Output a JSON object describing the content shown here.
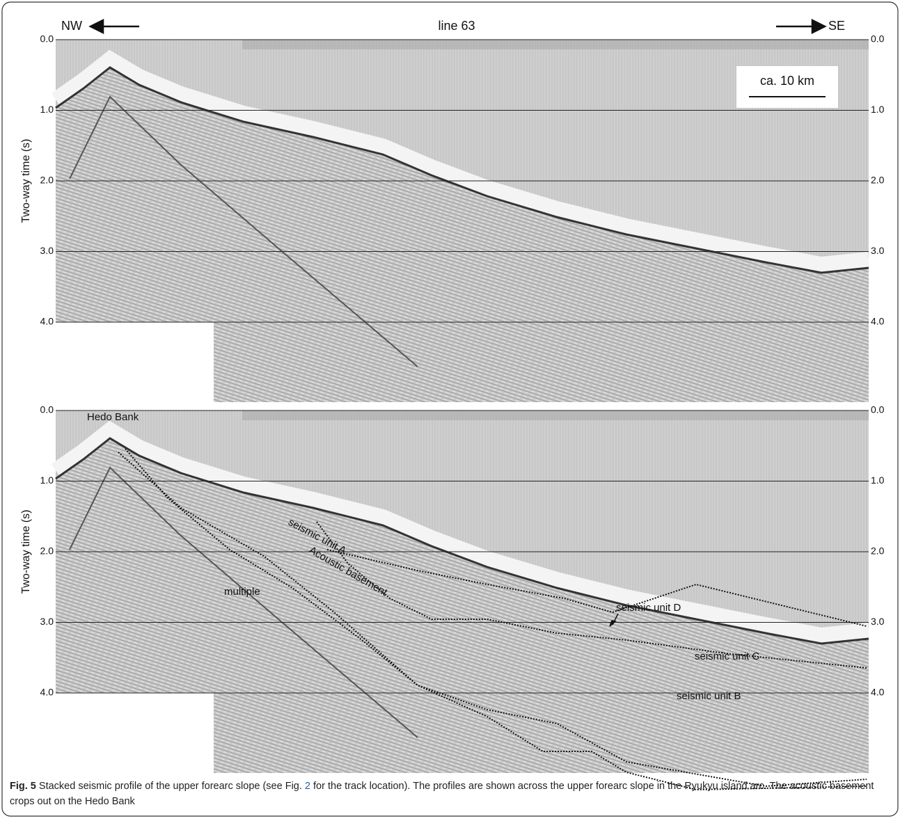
{
  "header": {
    "left": "NW",
    "title": "line 63",
    "right": "SE"
  },
  "scale_bar": "ca. 10 km",
  "panels": [
    {
      "y_axis_label": "Two-way time (s)",
      "yticks": [
        {
          "value": 0,
          "label": "0.0"
        },
        {
          "value": 1,
          "label": "1.0"
        },
        {
          "value": 2,
          "label": "2.0"
        },
        {
          "value": 3,
          "label": "3.0"
        },
        {
          "value": 4,
          "label": "4.0"
        }
      ]
    },
    {
      "y_axis_label": "Two-way time (s)",
      "yticks": [
        {
          "value": 0,
          "label": "0.0"
        },
        {
          "value": 1,
          "label": "1.0"
        },
        {
          "value": 2,
          "label": "2.0"
        },
        {
          "value": 3,
          "label": "3.0"
        },
        {
          "value": 4,
          "label": "4.0"
        }
      ],
      "annotations": [
        "Hedo Bank",
        "seismic unit A",
        "Acoustic basement",
        "multiple",
        "seismic unit D",
        "seismic unit C",
        "seismic unit B"
      ]
    }
  ],
  "caption": {
    "label": "Fig. 5",
    "text_before": "Stacked seismic profile of the upper forearc slope (see Fig. ",
    "ref": "2",
    "text_after": " for the track location). The profiles are shown across the upper forearc slope in the Ryukyu island arc. The acoustic basement crops out on the Hedo Bank"
  }
}
